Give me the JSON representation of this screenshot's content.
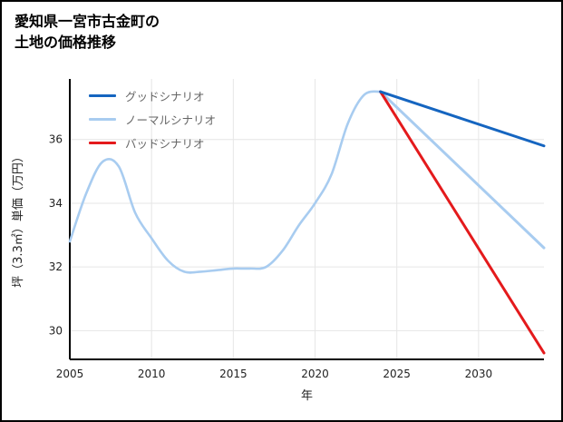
{
  "title": {
    "line1": "愛知県一宮市古金町の",
    "line2": "土地の価格推移"
  },
  "chart_data": {
    "type": "line",
    "title": "愛知県一宮市古金町の土地の価格推移",
    "xlabel": "年",
    "ylabel": "坪（3.3㎡）単価（万円）",
    "xlim": [
      2005,
      2034
    ],
    "ylim": [
      29.1,
      37.9
    ],
    "xticks": [
      2005,
      2010,
      2015,
      2020,
      2025,
      2030
    ],
    "yticks": [
      30,
      32,
      34,
      36
    ],
    "grid": true,
    "legend_position": "top-left-inside",
    "historical": {
      "color": "#a8ccf0",
      "x": [
        2005,
        2006,
        2007,
        2008,
        2009,
        2010,
        2011,
        2012,
        2013,
        2014,
        2015,
        2016,
        2017,
        2018,
        2019,
        2020,
        2021,
        2022,
        2023,
        2024
      ],
      "y": [
        32.8,
        34.3,
        35.3,
        35.15,
        33.7,
        32.9,
        32.2,
        31.85,
        31.85,
        31.9,
        31.95,
        31.95,
        32.0,
        32.5,
        33.3,
        34.0,
        34.9,
        36.5,
        37.4,
        37.5
      ]
    },
    "scenarios": [
      {
        "label": "グッドシナリオ",
        "color": "#1565c0",
        "x": [
          2024,
          2034
        ],
        "y": [
          37.5,
          35.8
        ]
      },
      {
        "label": "ノーマルシナリオ",
        "color": "#a8ccf0",
        "x": [
          2024,
          2034
        ],
        "y": [
          37.5,
          32.6
        ]
      },
      {
        "label": "バッドシナリオ",
        "color": "#e41a1c",
        "x": [
          2024,
          2034
        ],
        "y": [
          37.5,
          29.3
        ]
      }
    ],
    "axis_color": "#000000",
    "grid_color": "#e6e6e6"
  }
}
